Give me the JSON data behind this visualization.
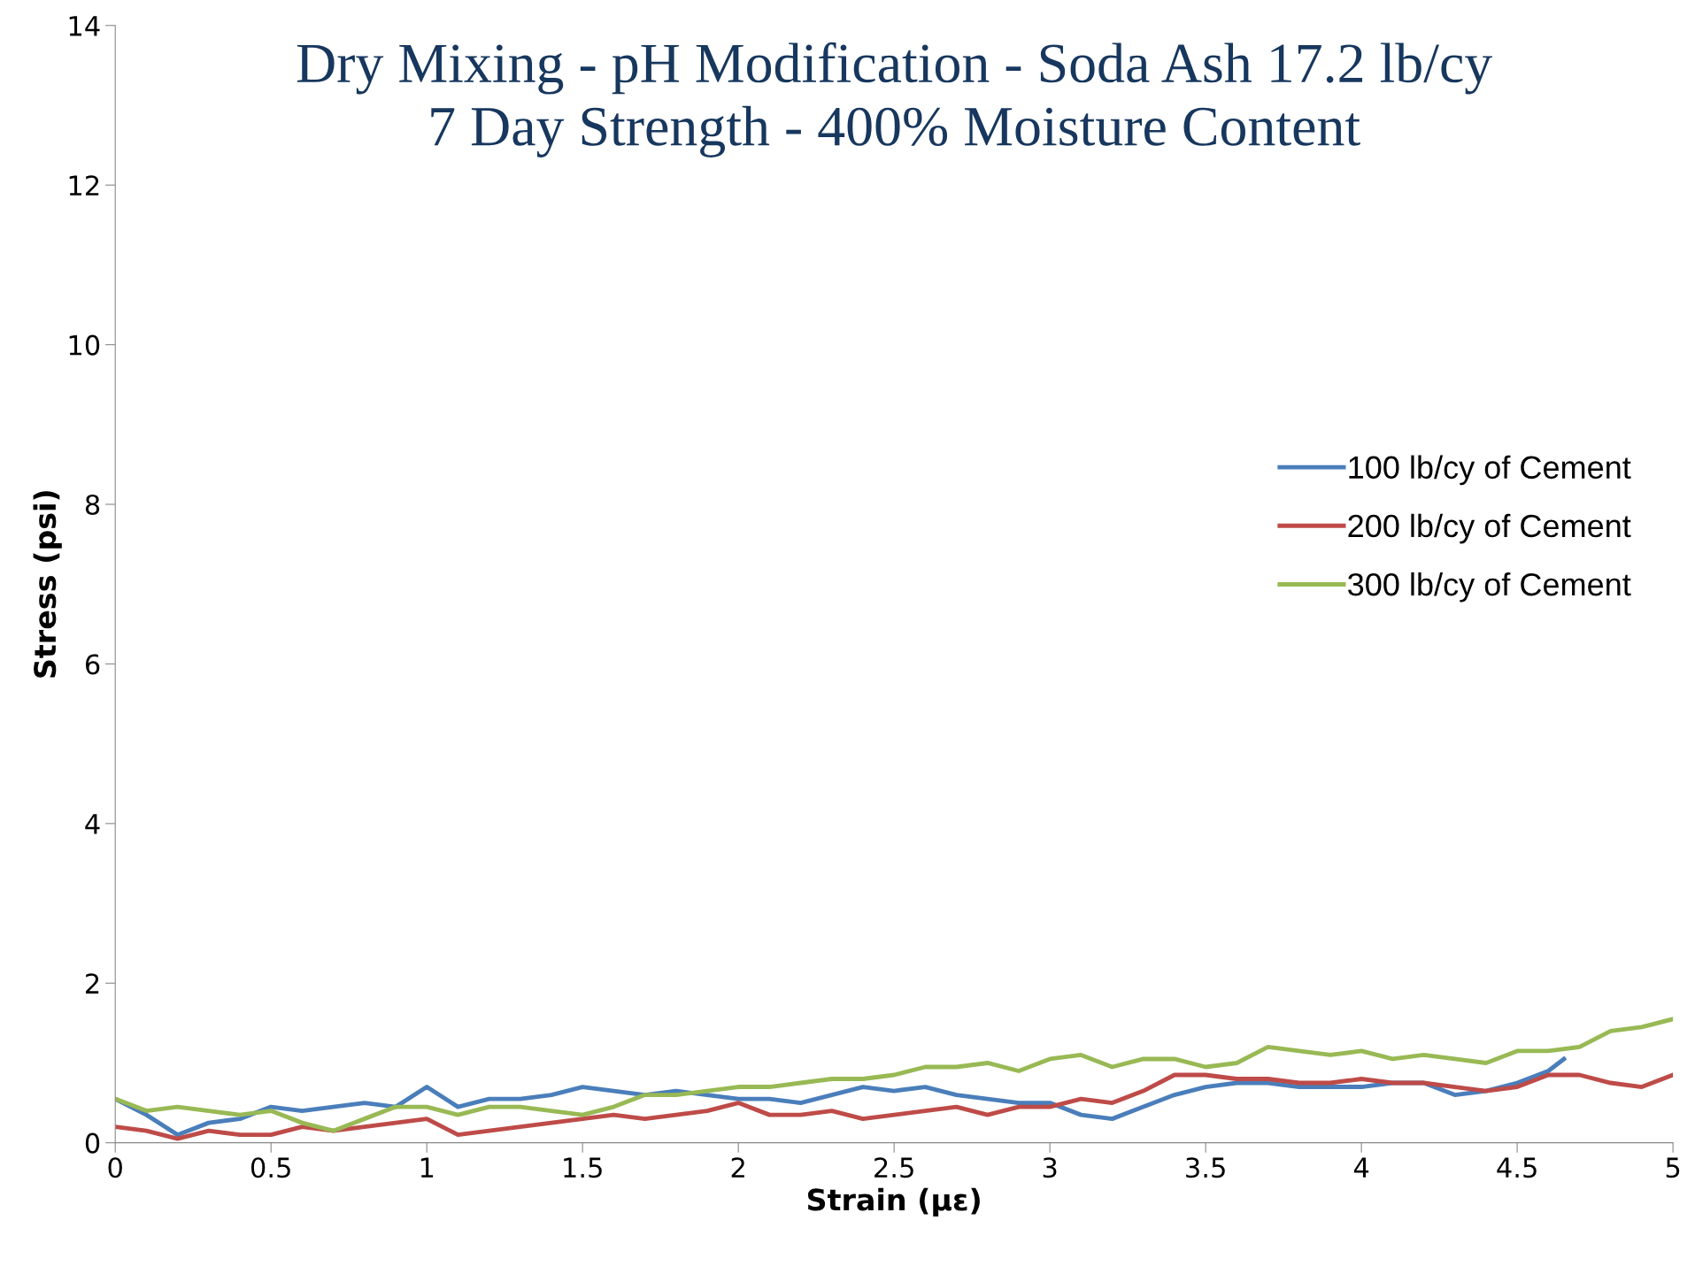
{
  "chart_data": {
    "type": "line",
    "title": "Dry Mixing - pH Modification - Soda Ash 17.2 lb/cy\n7 Day Strength - 400% Moisture Content",
    "xlabel": "Strain (με)",
    "ylabel": "Stress (psi)",
    "xlim": [
      0,
      5
    ],
    "ylim": [
      0,
      14
    ],
    "xticks": [
      0,
      0.5,
      1,
      1.5,
      2,
      2.5,
      3,
      3.5,
      4,
      4.5,
      5
    ],
    "yticks": [
      0,
      2,
      4,
      6,
      8,
      10,
      12,
      14
    ],
    "grid": false,
    "legend": "right",
    "marker": "none",
    "line_style": "solid",
    "series": [
      {
        "name": "100 lb/cy of Cement",
        "color": "#4a7ebb",
        "x": [
          0,
          0.1,
          0.2,
          0.3,
          0.4,
          0.5,
          0.6,
          0.7,
          0.8,
          0.9,
          1.0,
          1.1,
          1.2,
          1.3,
          1.4,
          1.5,
          1.6,
          1.7,
          1.8,
          1.9,
          2.0,
          2.1,
          2.2,
          2.3,
          2.4,
          2.5,
          2.6,
          2.7,
          2.8,
          2.9,
          3.0,
          3.1,
          3.2,
          3.3,
          3.4,
          3.5,
          3.6,
          3.7,
          3.8,
          3.9,
          4.0,
          4.1,
          4.2,
          4.3,
          4.4,
          4.5,
          4.6,
          4.65
        ],
        "values": [
          0.55,
          0.35,
          0.1,
          0.25,
          0.3,
          0.45,
          0.4,
          0.45,
          0.5,
          0.45,
          0.7,
          0.45,
          0.55,
          0.55,
          0.6,
          0.7,
          0.65,
          0.6,
          0.65,
          0.6,
          0.55,
          0.55,
          0.5,
          0.6,
          0.7,
          0.65,
          0.7,
          0.6,
          0.55,
          0.5,
          0.5,
          0.35,
          0.3,
          0.45,
          0.6,
          0.7,
          0.75,
          0.75,
          0.7,
          0.7,
          0.7,
          0.75,
          0.75,
          0.6,
          0.65,
          0.75,
          0.9,
          1.05
        ]
      },
      {
        "name": "200 lb/cy of Cement",
        "color": "#be4b48",
        "x": [
          0,
          0.1,
          0.2,
          0.3,
          0.4,
          0.5,
          0.6,
          0.7,
          0.8,
          0.9,
          1.0,
          1.1,
          1.2,
          1.3,
          1.4,
          1.5,
          1.6,
          1.7,
          1.8,
          1.9,
          2.0,
          2.1,
          2.2,
          2.3,
          2.4,
          2.5,
          2.6,
          2.7,
          2.8,
          2.9,
          3.0,
          3.1,
          3.2,
          3.3,
          3.4,
          3.5,
          3.6,
          3.7,
          3.8,
          3.9,
          4.0,
          4.1,
          4.2,
          4.3,
          4.4,
          4.5,
          4.6,
          4.7,
          4.8,
          4.9,
          5.0
        ],
        "values": [
          0.2,
          0.15,
          0.05,
          0.15,
          0.1,
          0.1,
          0.2,
          0.15,
          0.2,
          0.25,
          0.3,
          0.1,
          0.15,
          0.2,
          0.25,
          0.3,
          0.35,
          0.3,
          0.35,
          0.4,
          0.5,
          0.35,
          0.35,
          0.4,
          0.3,
          0.35,
          0.4,
          0.45,
          0.35,
          0.45,
          0.45,
          0.55,
          0.5,
          0.65,
          0.85,
          0.85,
          0.8,
          0.8,
          0.75,
          0.75,
          0.8,
          0.75,
          0.75,
          0.7,
          0.65,
          0.7,
          0.85,
          0.85,
          0.75,
          0.7,
          0.85
        ]
      },
      {
        "name": "300 lb/cy of Cement",
        "color": "#98b954",
        "x": [
          0,
          0.1,
          0.2,
          0.3,
          0.4,
          0.5,
          0.6,
          0.7,
          0.8,
          0.9,
          1.0,
          1.1,
          1.2,
          1.3,
          1.4,
          1.5,
          1.6,
          1.7,
          1.8,
          1.9,
          2.0,
          2.1,
          2.2,
          2.3,
          2.4,
          2.5,
          2.6,
          2.7,
          2.8,
          2.9,
          3.0,
          3.1,
          3.2,
          3.3,
          3.4,
          3.5,
          3.6,
          3.7,
          3.8,
          3.9,
          4.0,
          4.1,
          4.2,
          4.3,
          4.4,
          4.5,
          4.6,
          4.7,
          4.8,
          4.9,
          5.0
        ],
        "values": [
          0.55,
          0.4,
          0.45,
          0.4,
          0.35,
          0.4,
          0.25,
          0.15,
          0.3,
          0.45,
          0.45,
          0.35,
          0.45,
          0.45,
          0.4,
          0.35,
          0.45,
          0.6,
          0.6,
          0.65,
          0.7,
          0.7,
          0.75,
          0.8,
          0.8,
          0.85,
          0.95,
          0.95,
          1.0,
          0.9,
          1.05,
          1.1,
          0.95,
          1.05,
          1.05,
          0.95,
          1.0,
          1.2,
          1.15,
          1.1,
          1.15,
          1.05,
          1.1,
          1.05,
          1.0,
          1.15,
          1.15,
          1.2,
          1.4,
          1.45,
          1.55
        ]
      }
    ]
  }
}
